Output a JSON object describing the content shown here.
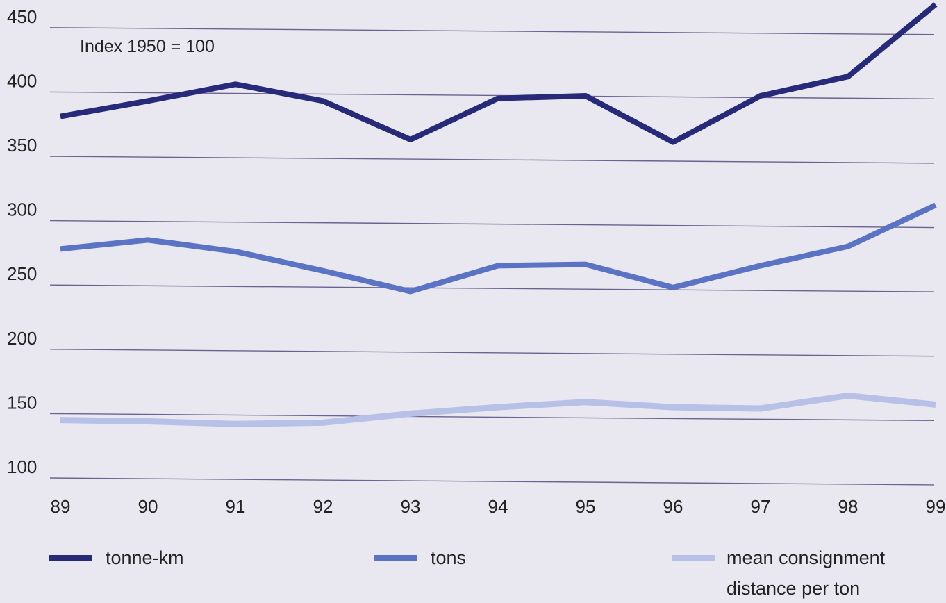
{
  "chart_data": {
    "type": "line",
    "title": "",
    "annotation": "Index 1950 = 100",
    "xlabel": "",
    "ylabel": "",
    "categories": [
      "89",
      "90",
      "91",
      "92",
      "93",
      "94",
      "95",
      "96",
      "97",
      "98",
      "99"
    ],
    "y_ticks": [
      100,
      150,
      200,
      250,
      300,
      350,
      400,
      450
    ],
    "ylim": [
      100,
      470
    ],
    "grid": true,
    "legend_position": "bottom",
    "series": [
      {
        "name": "tonne-km",
        "color": "#262a78",
        "values": [
          381,
          393,
          406,
          393,
          363,
          395,
          397,
          361,
          397,
          412,
          468
        ]
      },
      {
        "name": "tons",
        "color": "#5b73c4",
        "values": [
          278,
          285,
          276,
          261,
          245,
          265,
          266,
          248,
          265,
          280,
          312
        ]
      },
      {
        "name": "mean consignment distance per ton",
        "name_lines": [
          "mean consignment",
          "distance per ton"
        ],
        "color": "#b7c0e6",
        "values": [
          145,
          144,
          142,
          143,
          150,
          155,
          159,
          155,
          154,
          164,
          157
        ]
      }
    ]
  }
}
